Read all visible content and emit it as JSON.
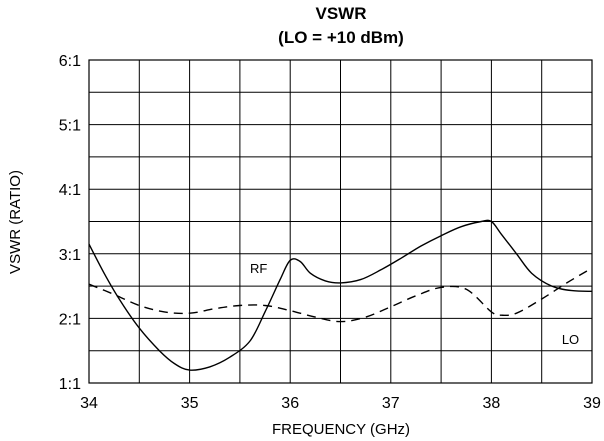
{
  "chart_data": {
    "type": "line",
    "title": "VSWR",
    "subtitle": "(LO = +10 dBm)",
    "xlabel": "FREQUENCY (GHz)",
    "ylabel": "VSWR (RATIO)",
    "xlim": [
      34,
      39
    ],
    "ylim": [
      1,
      6
    ],
    "x_ticks": [
      34,
      35,
      36,
      37,
      38,
      39
    ],
    "x_tick_labels": [
      "34",
      "35",
      "36",
      "37",
      "38",
      "39"
    ],
    "y_ticks": [
      1,
      2,
      3,
      4,
      5,
      6
    ],
    "y_tick_labels": [
      "1:1",
      "2:1",
      "3:1",
      "4:1",
      "5:1",
      "6:1"
    ],
    "grid": true,
    "x_grid_step": 0.5,
    "y_grid_step": 0.5,
    "series": [
      {
        "name": "RF",
        "style": "solid",
        "color": "#000000",
        "x": [
          34.0,
          34.15,
          34.3,
          34.5,
          34.7,
          34.85,
          35.0,
          35.2,
          35.4,
          35.6,
          35.75,
          35.9,
          36.0,
          36.1,
          36.2,
          36.35,
          36.5,
          36.7,
          36.9,
          37.1,
          37.3,
          37.5,
          37.7,
          37.9,
          38.0,
          38.1,
          38.25,
          38.4,
          38.6,
          38.8,
          39.0
        ],
        "y": [
          3.15,
          2.7,
          2.3,
          1.85,
          1.5,
          1.3,
          1.2,
          1.25,
          1.4,
          1.65,
          2.1,
          2.6,
          2.9,
          2.88,
          2.7,
          2.58,
          2.55,
          2.6,
          2.75,
          2.93,
          3.12,
          3.28,
          3.42,
          3.5,
          3.5,
          3.3,
          3.0,
          2.7,
          2.5,
          2.43,
          2.42
        ]
      },
      {
        "name": "LO",
        "style": "dashed",
        "color": "#000000",
        "x": [
          34.0,
          34.25,
          34.5,
          34.75,
          35.0,
          35.25,
          35.5,
          35.75,
          36.0,
          36.25,
          36.5,
          36.75,
          37.0,
          37.25,
          37.5,
          37.75,
          38.0,
          38.1,
          38.25,
          38.5,
          38.75,
          39.0
        ],
        "y": [
          2.53,
          2.37,
          2.2,
          2.1,
          2.08,
          2.15,
          2.2,
          2.2,
          2.12,
          2.02,
          1.95,
          2.02,
          2.18,
          2.35,
          2.48,
          2.45,
          2.1,
          2.05,
          2.08,
          2.3,
          2.55,
          2.78
        ]
      }
    ],
    "annotations": [
      {
        "text": "RF",
        "x": 35.6,
        "y": 2.7
      },
      {
        "text": "LO",
        "x": 38.7,
        "y": 1.6
      }
    ]
  }
}
